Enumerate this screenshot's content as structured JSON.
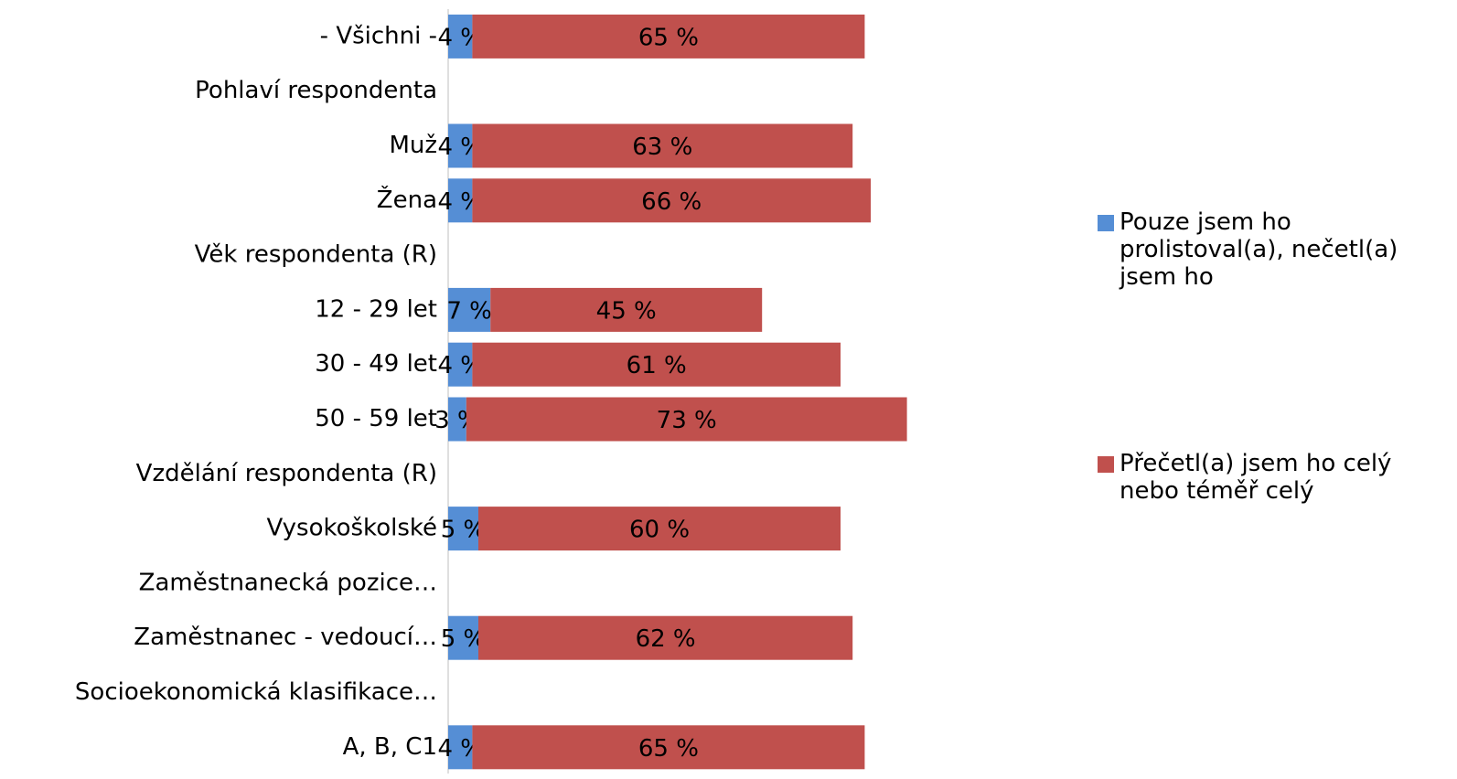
{
  "chart_data": {
    "type": "stacked_bar_horizontal",
    "categories": [
      "- Všichni -",
      "Pohlaví respondenta",
      "Muž",
      "Žena",
      "Věk respondenta (R)",
      "12 - 29 let",
      "30 - 49 let",
      "50 - 59 let",
      "Vzdělání respondenta (R)",
      "Vysokoškolské",
      "Zaměstnanecká pozice…",
      "Zaměstnanec - vedoucí…",
      "Socioekonomická klasifikace…",
      "A, B, C1"
    ],
    "series": [
      {
        "name": "Pouze jsem ho prolistoval(a), nečetl(a) jsem ho",
        "color": "#558ed5",
        "values": [
          4,
          null,
          4,
          4,
          null,
          7,
          4,
          3,
          null,
          5,
          null,
          5,
          null,
          4
        ],
        "value_labels": [
          "4 %",
          null,
          "4 %",
          "4 %",
          null,
          "7 %",
          "4 %",
          "3 %",
          null,
          "5 %",
          null,
          "5 %",
          null,
          "4 %"
        ]
      },
      {
        "name": "Přečetl(a) jsem ho celý nebo téměř celý",
        "color": "#c0504d",
        "values": [
          65,
          null,
          63,
          66,
          null,
          45,
          61,
          73,
          null,
          60,
          null,
          62,
          null,
          65
        ],
        "value_labels": [
          "65 %",
          null,
          "63 %",
          "66 %",
          null,
          "45 %",
          "61 %",
          "73 %",
          null,
          "60 %",
          null,
          "62 %",
          null,
          "65 %"
        ]
      }
    ],
    "xlim": [
      0,
      100
    ],
    "legend": "right"
  }
}
